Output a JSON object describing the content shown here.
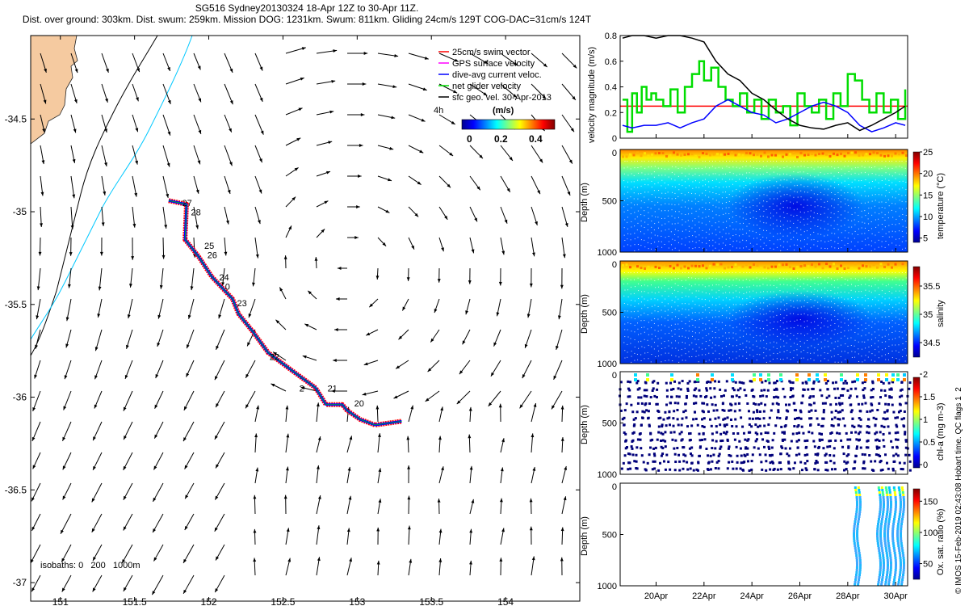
{
  "title": {
    "line1": "SG516 Sydney20130324 18-Apr 12Z to 30-Apr 11Z.",
    "line2": "Dist. over ground: 303km. Dist. swum: 259km. Mission DOG: 1231km. Swum: 811km. Gliding 24cm/s 129T COG-DAC=31cm/s 124T"
  },
  "side_note": "© IMOS 15-Feb-2019 02:43:08 Hobart time. QC flags 1  2",
  "map": {
    "x_ticks": [
      "151",
      "151.5",
      "152",
      "152.5",
      "153",
      "153.5",
      "154"
    ],
    "x_tick_values": [
      151,
      151.5,
      152,
      152.5,
      153,
      153.5,
      154
    ],
    "y_ticks": [
      "-34.5",
      "-35",
      "-35.5",
      "-36",
      "-36.5",
      "-37"
    ],
    "y_tick_values": [
      -34.5,
      -35,
      -35.5,
      -36,
      -36.5,
      -37
    ],
    "xlim": [
      150.8,
      154.5
    ],
    "ylim": [
      -37.1,
      -34.05
    ],
    "legend": [
      {
        "label": "25cm/s swim vector",
        "color": "#ff0000"
      },
      {
        "label": "GPS surface velocity",
        "color": "#ff00ff"
      },
      {
        "label": "dive-avg current veloc.",
        "color": "#0000ff"
      },
      {
        "label": "net glider velocity",
        "color": "#00dd00"
      },
      {
        "label": "sfc geo. vel. 30-Apr-2013",
        "color": "#000000"
      }
    ],
    "legend_extra": "4h",
    "colorbar": {
      "label": "(m/s)",
      "ticks": [
        "0",
        "0.2",
        "0.4"
      ]
    },
    "isobaths_text": "isobaths: 0   200   1000m",
    "day_labels": [
      {
        "text": "27",
        "lon": 151.82,
        "lat": -34.97
      },
      {
        "text": "28",
        "lon": 151.88,
        "lat": -35.02
      },
      {
        "text": "25",
        "lon": 151.97,
        "lat": -35.2
      },
      {
        "text": "26",
        "lon": 151.99,
        "lat": -35.25
      },
      {
        "text": "24",
        "lon": 152.07,
        "lat": -35.37
      },
      {
        "text": "0",
        "lon": 152.11,
        "lat": -35.42
      },
      {
        "text": "23",
        "lon": 152.19,
        "lat": -35.51
      },
      {
        "text": "22",
        "lon": 152.41,
        "lat": -35.8
      },
      {
        "text": "2",
        "lon": 152.61,
        "lat": -35.97
      },
      {
        "text": "21",
        "lon": 152.8,
        "lat": -35.97
      },
      {
        "text": "20",
        "lon": 152.98,
        "lat": -36.05
      }
    ],
    "track": [
      [
        151.73,
        -34.94
      ],
      [
        151.85,
        -34.96
      ],
      [
        151.84,
        -35.15
      ],
      [
        151.93,
        -35.24
      ],
      [
        152.02,
        -35.35
      ],
      [
        152.16,
        -35.47
      ],
      [
        152.2,
        -35.55
      ],
      [
        152.3,
        -35.65
      ],
      [
        152.4,
        -35.76
      ],
      [
        152.55,
        -35.85
      ],
      [
        152.72,
        -35.95
      ],
      [
        152.79,
        -36.04
      ],
      [
        152.9,
        -36.04
      ],
      [
        152.93,
        -36.07
      ],
      [
        153.02,
        -36.12
      ],
      [
        153.12,
        -36.15
      ],
      [
        153.3,
        -36.13
      ]
    ]
  },
  "panels": {
    "velocity": {
      "ylabel": "velocity magnitude (m/s)",
      "y_ticks": [
        "0",
        "0.2",
        "0.4",
        "0.6",
        "0.8"
      ],
      "y_tick_values": [
        0,
        0.2,
        0.4,
        0.6,
        0.8
      ]
    },
    "temperature": {
      "ylabel": "temperature (°C)",
      "cbar_ticks": [
        "5",
        "10",
        "15",
        "20",
        "25"
      ],
      "cbar_range": [
        4,
        25
      ]
    },
    "salinity": {
      "ylabel": "salinity",
      "cbar_ticks": [
        "34.5",
        "35",
        "35.5"
      ],
      "cbar_range": [
        34.3,
        35.9
      ]
    },
    "chla": {
      "ylabel": "chl-a (mg m-3)",
      "cbar_ticks": [
        "0",
        "0.5",
        "1",
        "1.5",
        "2"
      ],
      "cbar_range": [
        0,
        2
      ]
    },
    "oxygen": {
      "ylabel": "Ox. sat. ratio (%)",
      "cbar_ticks": [
        "50",
        "100",
        "150"
      ],
      "cbar_range": [
        30,
        175
      ]
    },
    "depth_label": "Depth (m)",
    "depth_ticks": [
      "0",
      "500",
      "1000"
    ],
    "depth_tick_values": [
      0,
      500,
      1000
    ],
    "time_ticks": [
      "20Apr",
      "22Apr",
      "24Apr",
      "26Apr",
      "28Apr",
      "30Apr"
    ],
    "time_tick_values": [
      20,
      22,
      24,
      26,
      28,
      30
    ],
    "time_range": [
      18.5,
      30.5
    ]
  },
  "chart_data": [
    {
      "type": "line",
      "title": "",
      "xlabel": "",
      "ylabel": "velocity magnitude (m/s)",
      "ylim": [
        0,
        0.8
      ],
      "xlim": [
        18.5,
        30.5
      ],
      "series": [
        {
          "name": "25cm/s swim vector",
          "color": "#ff0000",
          "x": [
            18.5,
            30.5
          ],
          "y": [
            0.25,
            0.25
          ]
        },
        {
          "name": "net glider velocity",
          "color": "#00dd00",
          "x": [
            18.6,
            18.8,
            19.0,
            19.2,
            19.4,
            19.6,
            19.8,
            20.0,
            20.3,
            20.6,
            20.9,
            21.2,
            21.5,
            21.8,
            22.0,
            22.3,
            22.6,
            22.9,
            23.2,
            23.5,
            23.8,
            24.1,
            24.4,
            24.7,
            25.0,
            25.3,
            25.6,
            25.9,
            26.2,
            26.5,
            26.8,
            27.1,
            27.4,
            27.7,
            28.0,
            28.3,
            28.6,
            28.9,
            29.2,
            29.5,
            29.8,
            30.1,
            30.4
          ],
          "y": [
            0.3,
            0.05,
            0.35,
            0.2,
            0.4,
            0.3,
            0.35,
            0.3,
            0.25,
            0.38,
            0.2,
            0.4,
            0.5,
            0.6,
            0.45,
            0.55,
            0.4,
            0.3,
            0.25,
            0.35,
            0.2,
            0.3,
            0.15,
            0.3,
            0.2,
            0.25,
            0.1,
            0.35,
            0.25,
            0.2,
            0.3,
            0.15,
            0.35,
            0.25,
            0.5,
            0.45,
            0.3,
            0.2,
            0.35,
            0.2,
            0.3,
            0.15,
            0.38
          ]
        },
        {
          "name": "dive-avg current veloc.",
          "color": "#0000ff",
          "x": [
            18.6,
            19.0,
            19.5,
            20.0,
            20.5,
            21.0,
            21.5,
            22.0,
            22.5,
            23.0,
            23.5,
            24.0,
            24.5,
            25.0,
            25.5,
            26.0,
            26.5,
            27.0,
            27.5,
            28.0,
            28.5,
            29.0,
            29.5,
            30.0,
            30.4
          ],
          "y": [
            0.1,
            0.08,
            0.1,
            0.1,
            0.12,
            0.08,
            0.12,
            0.15,
            0.25,
            0.3,
            0.25,
            0.2,
            0.18,
            0.12,
            0.15,
            0.2,
            0.25,
            0.28,
            0.25,
            0.2,
            0.1,
            0.05,
            0.08,
            0.12,
            0.1
          ]
        },
        {
          "name": "sfc geo. vel.",
          "color": "#000000",
          "x": [
            18.6,
            19.0,
            19.5,
            20.0,
            20.5,
            21.0,
            21.5,
            22.0,
            22.5,
            23.0,
            23.5,
            24.0,
            24.5,
            25.0,
            25.5,
            26.0,
            26.5,
            27.0,
            27.5,
            28.0,
            28.5,
            29.0,
            29.5,
            30.0,
            30.4
          ],
          "y": [
            0.78,
            0.8,
            0.8,
            0.78,
            0.8,
            0.8,
            0.78,
            0.75,
            0.6,
            0.5,
            0.45,
            0.35,
            0.3,
            0.22,
            0.15,
            0.1,
            0.08,
            0.07,
            0.1,
            0.12,
            0.06,
            0.1,
            0.15,
            0.2,
            0.25
          ]
        }
      ]
    }
  ]
}
